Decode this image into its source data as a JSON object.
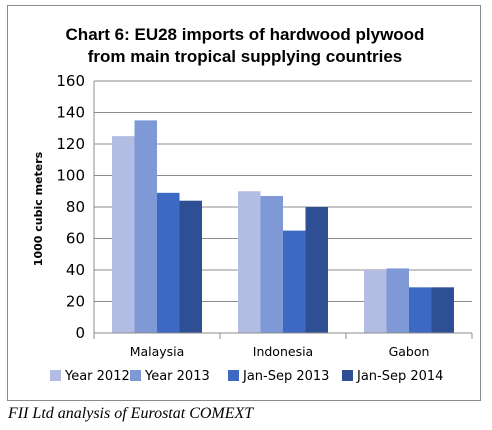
{
  "chart_data": {
    "type": "bar",
    "title_lines": [
      "Chart 6: EU28 imports of hardwood plywood",
      "from main tropical supplying countries"
    ],
    "xlabel": "",
    "ylabel": "1000 cubic meters",
    "ylim": [
      0,
      160
    ],
    "yticks": [
      0,
      20,
      40,
      60,
      80,
      100,
      120,
      140,
      160
    ],
    "grid": true,
    "legend_position": "bottom",
    "categories": [
      "Malaysia",
      "Indonesia",
      "Gabon"
    ],
    "series": [
      {
        "name": "Year 2012",
        "color": "#b3bce3",
        "values": [
          125,
          90,
          40
        ]
      },
      {
        "name": "Year 2013",
        "color": "#7f98d6",
        "values": [
          135,
          87,
          41
        ]
      },
      {
        "name": "Jan-Sep 2013",
        "color": "#3e69c2",
        "values": [
          89,
          65,
          29
        ]
      },
      {
        "name": "Jan-Sep 2014",
        "color": "#2f4f94",
        "values": [
          84,
          80,
          29
        ]
      }
    ]
  },
  "caption": "FII Ltd analysis of Eurostat COMEXT"
}
